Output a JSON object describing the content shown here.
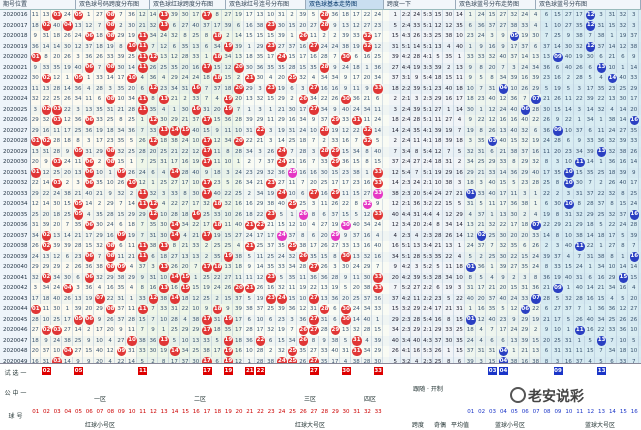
{
  "tabs": [
    {
      "label": "期号位置",
      "active": false
    },
    {
      "label": "双色球号码跨度分布图",
      "active": false
    },
    {
      "label": "双色球红球跨度分布图",
      "active": false
    },
    {
      "label": "双色球红号连号分布图",
      "active": false
    },
    {
      "label": "双色球基本走势图",
      "active": true
    },
    {
      "label": "跨度一下",
      "active": false
    },
    {
      "label": "双色球蓝号分布走势图",
      "active": false
    },
    {
      "label": "双色球蓝号分布图",
      "active": false
    }
  ],
  "periods": [
    "2020016",
    "2020017",
    "2020018",
    "2020019",
    "2020020",
    "2020021",
    "2020022",
    "2020023",
    "2020024",
    "2020025",
    "2020026",
    "2020027",
    "2020028",
    "2020029",
    "2020030",
    "2020031",
    "2020032",
    "2020033",
    "2020034",
    "2020035",
    "2020036",
    "2020037",
    "2020038",
    "2020039",
    "2020040",
    "2020041",
    "2020042",
    "2020043",
    "2020044",
    "2020045",
    "2020046",
    "2020047",
    "2020048",
    "2020049"
  ],
  "footer": {
    "row1_label": "试 选 一",
    "row2_label": "公 中 一",
    "row3_label": "球 号",
    "red_picks": [
      "02",
      "05",
      "11",
      "17",
      "19",
      "21",
      "22",
      "27",
      "30",
      "33"
    ],
    "blue_picks": [
      "03",
      "04",
      "09",
      "13"
    ],
    "mid_label": "跟随 · 开制",
    "section_labels": [
      "一区",
      "二区",
      "三区",
      "四区",
      "红球小号区",
      "红球大号区",
      "跨度",
      "奇偶",
      "平均值",
      "蓝球小号区",
      "蓝球大号区"
    ],
    "numbers": [
      "01",
      "02",
      "03",
      "04",
      "05",
      "06",
      "07",
      "08",
      "09",
      "10",
      "11",
      "12",
      "13",
      "14",
      "15",
      "16",
      "17",
      "18",
      "19",
      "20",
      "21",
      "22",
      "23",
      "24",
      "25",
      "26",
      "27",
      "28",
      "29",
      "30",
      "31",
      "32",
      "33"
    ],
    "blue_numbers": [
      "01",
      "02",
      "03",
      "04",
      "05",
      "06",
      "07",
      "08",
      "09",
      "10",
      "11",
      "12",
      "13",
      "14",
      "15",
      "16"
    ]
  },
  "watermark": "老安说彩",
  "colors": {
    "red_ball": "#e03535",
    "blue_ball": "#2a3fc2",
    "pink_ball": "#e536c4",
    "green_ball": "#1a7a50"
  }
}
